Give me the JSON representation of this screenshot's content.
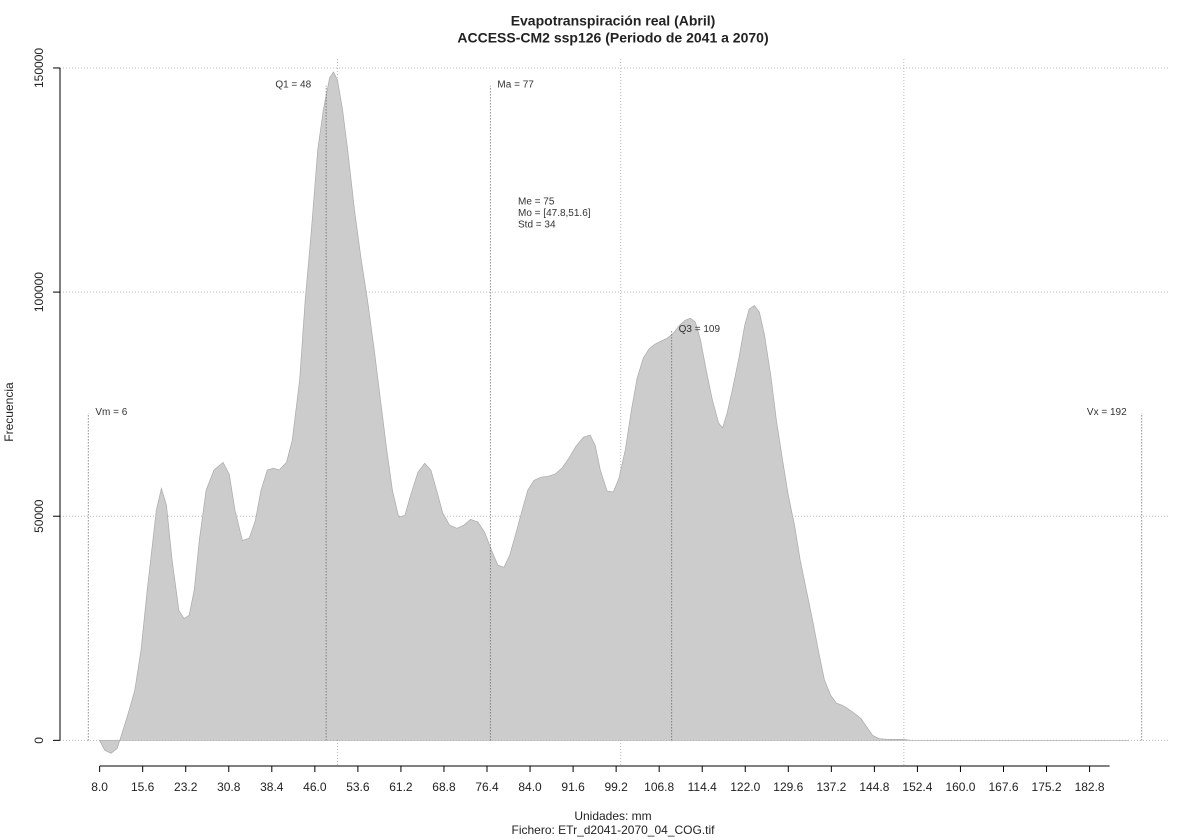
{
  "chart_data": {
    "type": "area",
    "title": "Evapotranspiración real (Abril)",
    "subtitle": "ACCESS-CM2 ssp126 (Periodo de 2041 a 2070)",
    "y_label": "Frecuencia",
    "x_label": "Unidades: mm",
    "file_label": "Fichero: ETr_d2041-2070_04_COG.tif",
    "color": "#cccccc",
    "xlim": [
      1,
      197
    ],
    "ylim": [
      -5500,
      152000
    ],
    "xticks": [
      {
        "value": 8,
        "label": "8.0"
      },
      15.6,
      23.2,
      30.8,
      38.4,
      {
        "value": 46,
        "label": "46.0"
      },
      53.6,
      61.2,
      68.8,
      76.4,
      {
        "value": 84,
        "label": "84.0"
      },
      91.6,
      99.2,
      106.8,
      114.4,
      {
        "value": 122,
        "label": "122.0"
      },
      129.6,
      137.2,
      144.8,
      152.4,
      {
        "value": 160,
        "label": "160.0"
      },
      167.6,
      175.2,
      182.8
    ],
    "yticks": [
      0,
      50000,
      100000,
      150000
    ],
    "xgrid": [
      50,
      100,
      150
    ],
    "grid": true,
    "x": [
      8.0,
      8.9,
      10.0,
      11.1,
      12.1,
      13.2,
      14.2,
      15.3,
      16.4,
      18.0,
      18.9,
      19.8,
      20.8,
      22.0,
      22.9,
      23.8,
      24.7,
      25.6,
      26.8,
      28.2,
      29.8,
      30.9,
      31.9,
      33.2,
      34.4,
      35.5,
      36.5,
      37.6,
      38.7,
      39.7,
      41.0,
      42.0,
      43.3,
      44.3,
      45.4,
      46.5,
      47.5,
      48.6,
      49.3,
      50.0,
      50.9,
      51.8,
      53.0,
      54.2,
      55.3,
      56.5,
      57.6,
      58.7,
      59.7,
      60.8,
      61.9,
      62.9,
      64.2,
      65.4,
      66.5,
      67.5,
      68.6,
      69.8,
      71.1,
      72.3,
      73.5,
      74.8,
      76.0,
      77.2,
      78.3,
      79.4,
      80.4,
      81.5,
      82.6,
      83.6,
      84.7,
      85.9,
      87.2,
      88.4,
      89.6,
      90.9,
      92.1,
      93.4,
      94.6,
      95.5,
      96.4,
      97.6,
      98.7,
      99.7,
      100.8,
      101.9,
      102.9,
      104.0,
      105.0,
      106.1,
      107.2,
      108.2,
      109.3,
      110.4,
      111.4,
      112.3,
      113.2,
      114.1,
      115.1,
      116.2,
      117.3,
      118.0,
      118.8,
      119.7,
      120.8,
      121.9,
      122.7,
      123.6,
      124.5,
      125.4,
      126.5,
      127.5,
      128.6,
      129.6,
      130.7,
      131.7,
      132.8,
      133.9,
      134.9,
      136.0,
      137.1,
      138.1,
      139.2,
      140.3,
      141.3,
      142.4,
      143.5,
      144.5,
      145.6,
      147.0,
      150.0,
      151.2,
      189.8
    ],
    "values": [
      0,
      -2200,
      -2900,
      -1800,
      2200,
      6700,
      11200,
      20100,
      33500,
      51300,
      56200,
      52400,
      40200,
      29000,
      27200,
      27900,
      33500,
      44600,
      55800,
      60300,
      62000,
      59300,
      51300,
      44600,
      45100,
      49100,
      55800,
      60300,
      60700,
      60300,
      62000,
      66900,
      80300,
      98200,
      113800,
      131700,
      140600,
      147800,
      149100,
      147300,
      140600,
      131700,
      118300,
      107100,
      98200,
      87000,
      75900,
      64700,
      55800,
      49800,
      50200,
      54700,
      59800,
      61800,
      60300,
      55800,
      50700,
      48000,
      47300,
      48000,
      49300,
      48700,
      46400,
      42400,
      39100,
      38600,
      41300,
      46200,
      51300,
      55800,
      58000,
      58700,
      58900,
      59400,
      60700,
      63000,
      65600,
      67600,
      68100,
      65800,
      60300,
      55600,
      55400,
      58500,
      64700,
      73700,
      80800,
      85300,
      87300,
      88400,
      89100,
      89700,
      90800,
      92600,
      93700,
      94200,
      93300,
      89300,
      82600,
      75900,
      70800,
      69700,
      73000,
      78100,
      84800,
      92600,
      96200,
      97000,
      95500,
      90400,
      81500,
      71400,
      62500,
      54700,
      48000,
      40200,
      33500,
      26800,
      20100,
      13400,
      10000,
      8300,
      7800,
      6900,
      6000,
      4900,
      2900,
      1100,
      400,
      200,
      200,
      0,
      0
    ],
    "markers": [
      {
        "label": "Vm = 6",
        "x": 6,
        "y": 73000
      },
      {
        "label": "Q1 = 48",
        "x": 48,
        "y": 146000
      },
      {
        "label": "Ma = 77",
        "x": 77,
        "y": 146000
      },
      {
        "label": "Q3 = 109",
        "x": 109,
        "y": 91500
      },
      {
        "label": "Vx = 192",
        "x": 192,
        "y": 73000
      }
    ],
    "stats": [
      "Me = 75",
      "Mo = [47.8,51.6]",
      "Std = 34"
    ]
  }
}
